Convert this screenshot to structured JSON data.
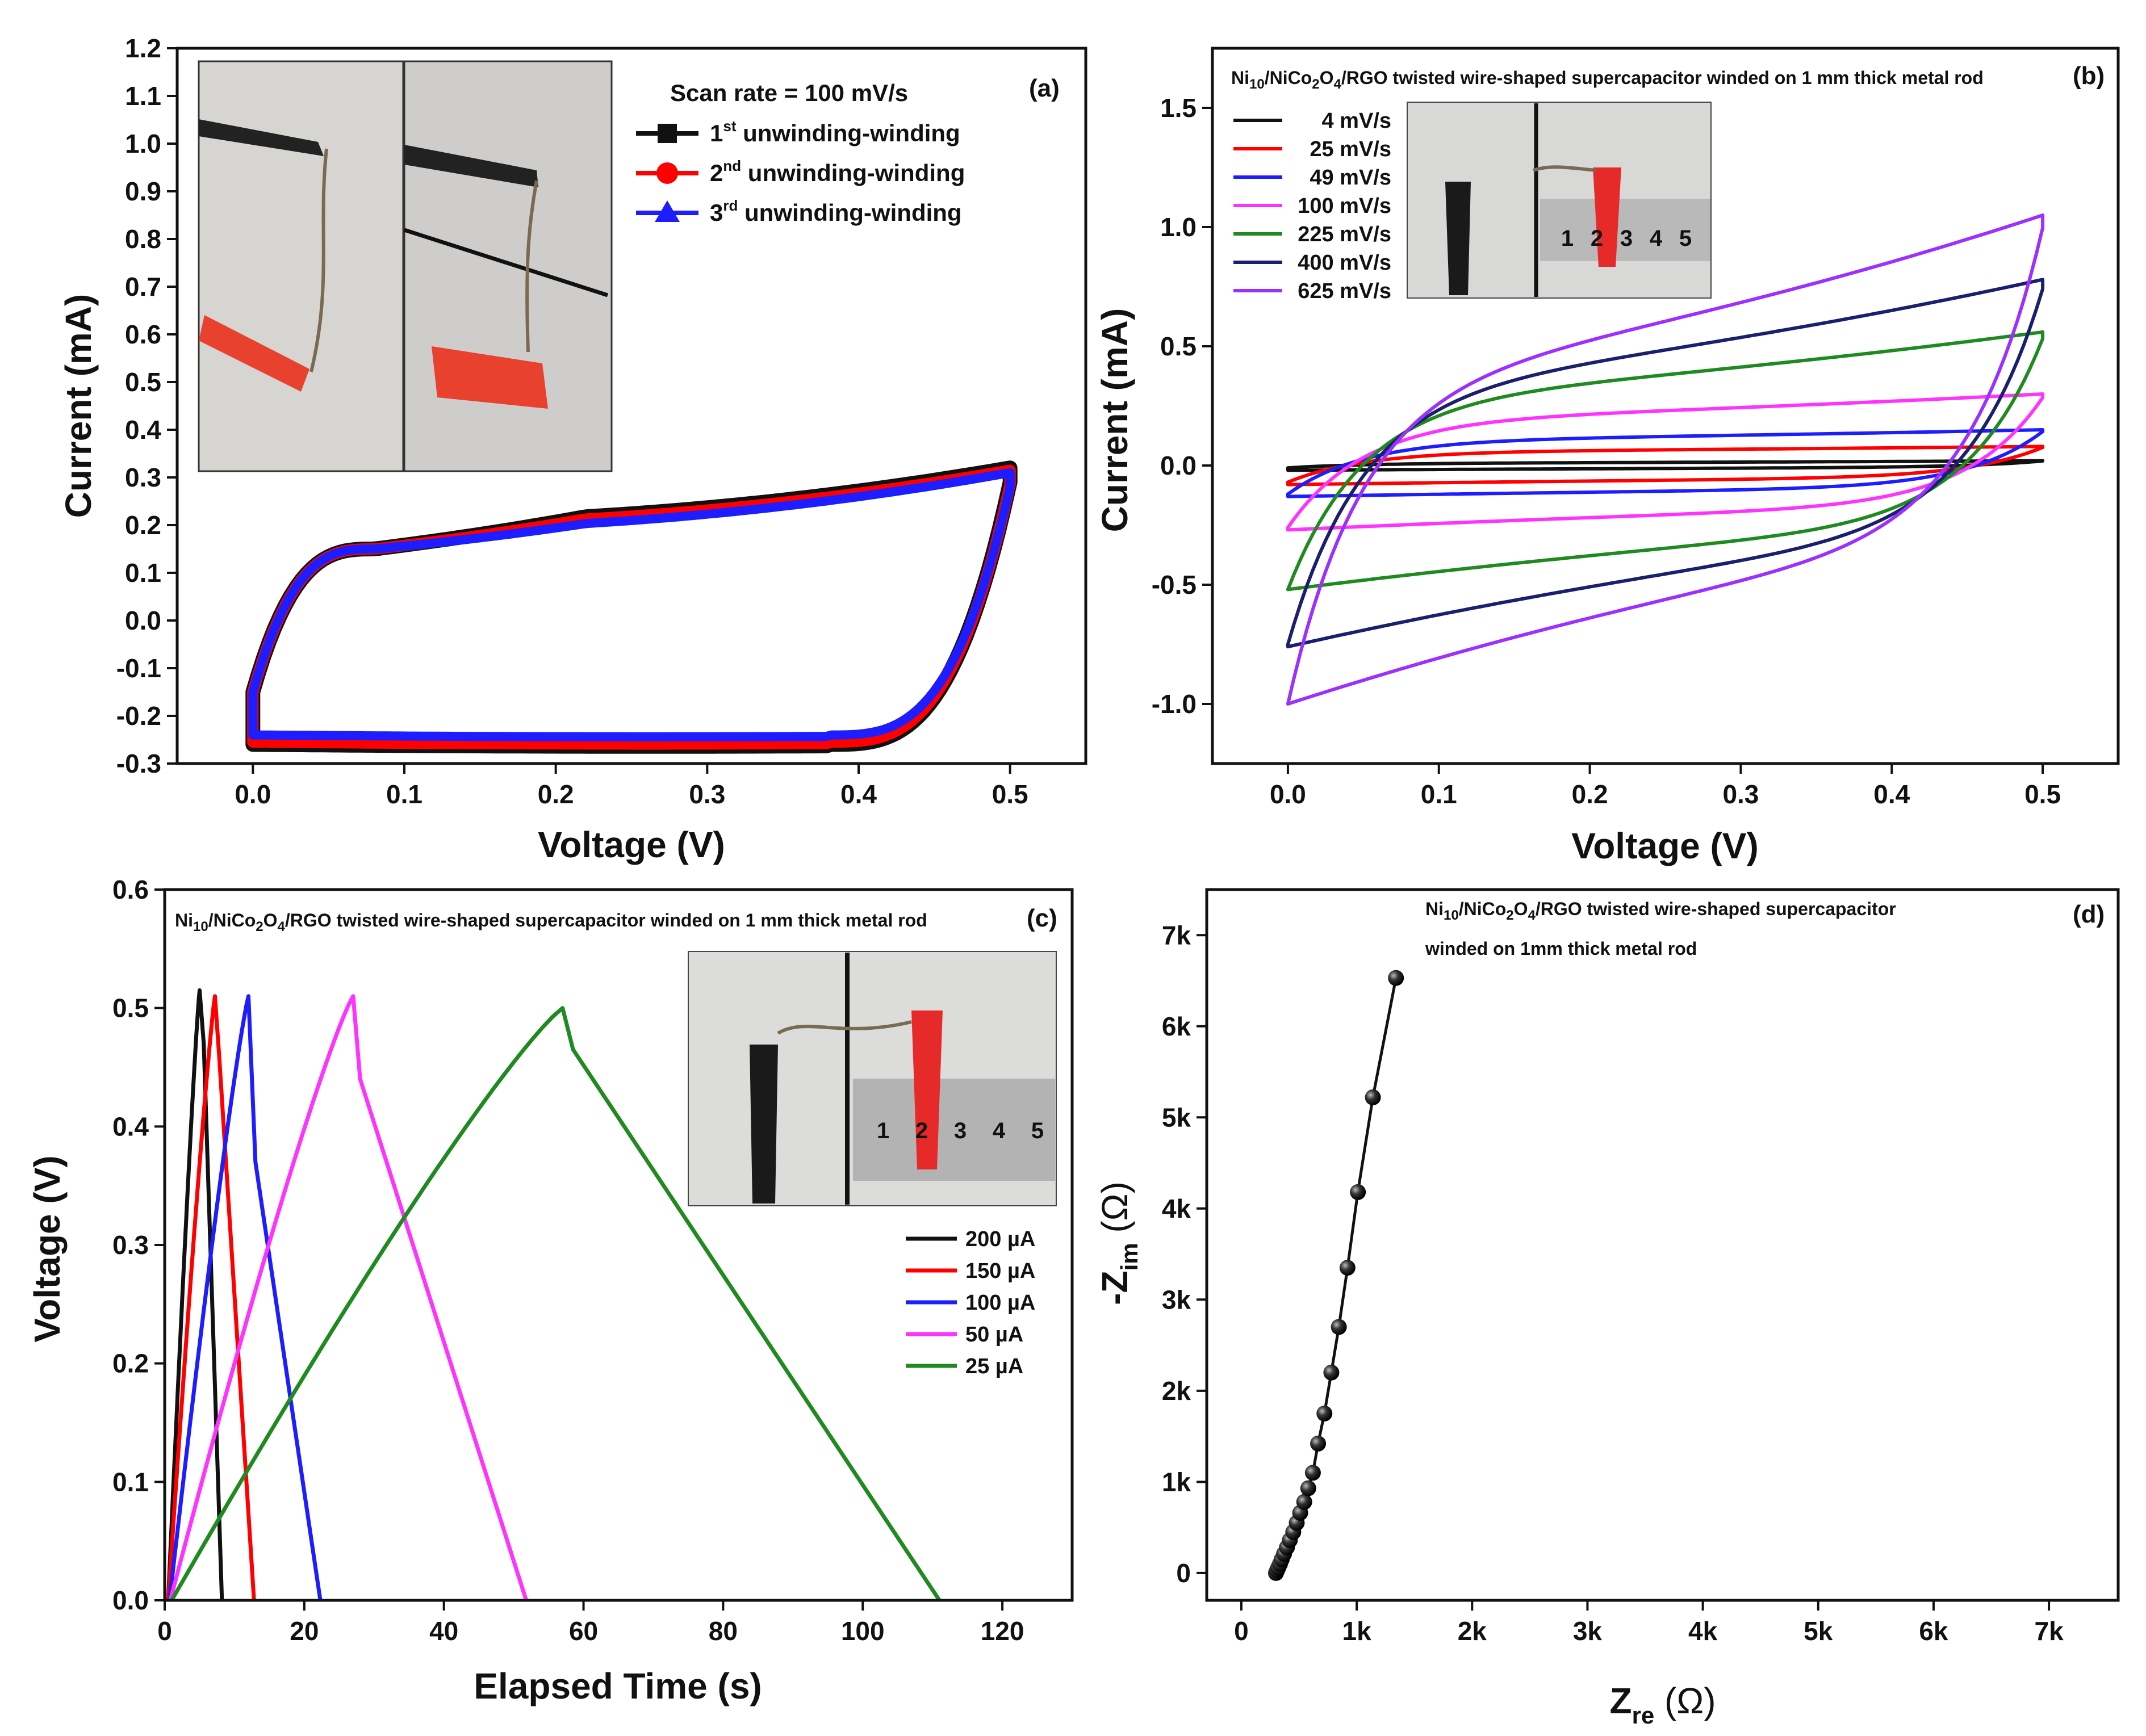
{
  "colors": {
    "black": "#111111",
    "red": "#ff0000",
    "blue": "#1d1dff",
    "magenta": "#ff33ff",
    "green": "#1f8a1f",
    "navy": "#1a1f6e",
    "violet": "#9b30ff"
  },
  "chart_data": [
    {
      "id": "a",
      "type": "line",
      "panel_label": "(a)",
      "xlabel": "Voltage (V)",
      "ylabel": "Current (mA)",
      "xlim": [
        -0.05,
        0.55
      ],
      "ylim": [
        -0.3,
        1.2
      ],
      "xticks": [
        0.0,
        0.1,
        0.2,
        0.3,
        0.4,
        0.5
      ],
      "xtick_labels": [
        "0.0",
        "0.1",
        "0.2",
        "0.3",
        "0.4",
        "0.5"
      ],
      "yticks": [
        -0.3,
        -0.2,
        -0.1,
        0.0,
        0.1,
        0.2,
        0.3,
        0.4,
        0.5,
        0.6,
        0.7,
        0.8,
        0.9,
        1.0,
        1.1,
        1.2
      ],
      "ytick_labels": [
        "-0.3",
        "-0.2",
        "-0.1",
        "0.0",
        "0.1",
        "0.2",
        "0.3",
        "0.4",
        "0.5",
        "0.6",
        "0.7",
        "0.8",
        "0.9",
        "1.0",
        "1.1",
        "1.2"
      ],
      "legend_title": "Scan rate = 100 mV/s",
      "legend_location": "top-right",
      "inset": "photograph of twisted wire held by black and red clips, unwound and wound on rod",
      "series": [
        {
          "name": "1st unwinding-winding",
          "color": "#111111",
          "marker": "square",
          "x_min": 0.0,
          "x_max": 0.5,
          "i_top_start": -0.15,
          "i_top_plateau": 0.205,
          "i_top_end": 0.32,
          "i_bottom": -0.26,
          "i_bottom_end": 0.29
        },
        {
          "name": "2nd unwinding-winding",
          "color": "#ff0000",
          "marker": "circle",
          "x_min": 0.0,
          "x_max": 0.5,
          "i_top_start": -0.15,
          "i_top_plateau": 0.2,
          "i_top_end": 0.315,
          "i_bottom": -0.255,
          "i_bottom_end": 0.285
        },
        {
          "name": "3rd unwinding-winding",
          "color": "#1d1dff",
          "marker": "triangle",
          "x_min": 0.0,
          "x_max": 0.5,
          "i_top_start": -0.15,
          "i_top_plateau": 0.19,
          "i_top_end": 0.31,
          "i_bottom": -0.24,
          "i_bottom_end": 0.28
        }
      ]
    },
    {
      "id": "b",
      "type": "line",
      "panel_label": "(b)",
      "title": "Ni10/NiCo2O4/RGO twisted wire-shaped supercapacitor winded on 1 mm thick metal rod",
      "xlabel": "Voltage (V)",
      "ylabel": "Current (mA)",
      "xlim": [
        -0.05,
        0.55
      ],
      "ylim": [
        -1.25,
        1.75
      ],
      "xticks": [
        0.0,
        0.1,
        0.2,
        0.3,
        0.4,
        0.5
      ],
      "xtick_labels": [
        "0.0",
        "0.1",
        "0.2",
        "0.3",
        "0.4",
        "0.5"
      ],
      "yticks": [
        -1.0,
        -0.5,
        0.0,
        0.5,
        1.0,
        1.5
      ],
      "ytick_labels": [
        "-1.0",
        "-0.5",
        "0.0",
        "0.5",
        "1.0",
        "1.5"
      ],
      "legend_location": "top-left",
      "inset": "photograph of wire wound on 1 mm rod next to a ruler marked 1 2 3 4 5",
      "series": [
        {
          "name": "4 mV/s",
          "color": "#111111",
          "i_start": -0.01,
          "i_end_top": 0.02,
          "i_top_plateau": 0.01,
          "i_bottom": -0.02
        },
        {
          "name": "25 mV/s",
          "color": "#ff0000",
          "i_start": -0.07,
          "i_end_top": 0.08,
          "i_top_plateau": 0.06,
          "i_bottom": -0.08
        },
        {
          "name": "49 mV/s",
          "color": "#1d1dff",
          "i_start": -0.12,
          "i_end_top": 0.15,
          "i_top_plateau": 0.11,
          "i_bottom": -0.13
        },
        {
          "name": "100 mV/s",
          "color": "#ff33ff",
          "i_start": -0.26,
          "i_end_top": 0.3,
          "i_top_plateau": 0.2,
          "i_bottom": -0.27
        },
        {
          "name": "225 mV/s",
          "color": "#1f8a1f",
          "i_start": -0.52,
          "i_end_top": 0.56,
          "i_top_plateau": 0.3,
          "i_bottom": -0.52
        },
        {
          "name": "400 mV/s",
          "color": "#1a1f6e",
          "i_start": -0.75,
          "i_end_top": 0.78,
          "i_top_plateau": 0.35,
          "i_bottom": -0.76
        },
        {
          "name": "625 mV/s",
          "color": "#9b30ff",
          "i_start": -1.0,
          "i_end_top": 1.05,
          "i_top_plateau": 0.4,
          "i_bottom": -1.0
        }
      ]
    },
    {
      "id": "c",
      "type": "line",
      "panel_label": "(c)",
      "title": "Ni10/NiCo2O4/RGO twisted wire-shaped supercapacitor winded on 1 mm thick metal rod",
      "xlabel": "Elapsed Time (s)",
      "ylabel": "Voltage (V)",
      "xlim": [
        0,
        130
      ],
      "ylim": [
        0.0,
        0.6
      ],
      "xticks": [
        0,
        20,
        40,
        60,
        80,
        100,
        120
      ],
      "xtick_labels": [
        "0",
        "20",
        "40",
        "60",
        "80",
        "100",
        "120"
      ],
      "yticks": [
        0.0,
        0.1,
        0.2,
        0.3,
        0.4,
        0.5,
        0.6
      ],
      "ytick_labels": [
        "0.0",
        "0.1",
        "0.2",
        "0.3",
        "0.4",
        "0.5",
        "0.6"
      ],
      "legend_location": "right",
      "inset": "photograph of wire wound on 1 mm rod next to a ruler marked 1 2 3 4 5",
      "series": [
        {
          "name": "200 µA",
          "color": "#111111",
          "t_start": 0.5,
          "t_peak": 5,
          "v_peak": 0.515,
          "t_knee": 5.6,
          "v_knee": 0.47,
          "t_end": 8.2
        },
        {
          "name": "150 µA",
          "color": "#ff0000",
          "t_start": 0.5,
          "t_peak": 7.2,
          "v_peak": 0.51,
          "t_knee": 7.8,
          "v_knee": 0.46,
          "t_end": 12.8
        },
        {
          "name": "100 µA",
          "color": "#1d1dff",
          "t_start": 0.7,
          "t_peak": 12,
          "v_peak": 0.51,
          "t_knee": 13,
          "v_knee": 0.37,
          "t_end": 22.3
        },
        {
          "name": "50 µA",
          "color": "#ff33ff",
          "t_start": 0.8,
          "t_peak": 27,
          "v_peak": 0.51,
          "t_knee": 28,
          "v_knee": 0.44,
          "t_end": 51.8
        },
        {
          "name": "25 µA",
          "color": "#1f8a1f",
          "t_start": 1.0,
          "t_peak": 57,
          "v_peak": 0.5,
          "t_knee": 58.5,
          "v_knee": 0.465,
          "t_end": 111
        }
      ]
    },
    {
      "id": "d",
      "type": "scatter",
      "panel_label": "(d)",
      "title_line1": "Ni10/NiCo2O4/RGO twisted wire-shaped supercapacitor",
      "title_line2": "winded on 1mm thick metal rod",
      "xlabel": "Zre (Ω)",
      "ylabel": "-Zim (Ω)",
      "xlim": [
        -300,
        7600
      ],
      "ylim": [
        -300,
        7500
      ],
      "xticks": [
        0,
        1000,
        2000,
        3000,
        4000,
        5000,
        6000,
        7000
      ],
      "xtick_labels": [
        "0",
        "1k",
        "2k",
        "3k",
        "4k",
        "5k",
        "6k",
        "7k"
      ],
      "yticks": [
        0,
        1000,
        2000,
        3000,
        4000,
        5000,
        6000,
        7000
      ],
      "ytick_labels": [
        "0",
        "1k",
        "2k",
        "3k",
        "4k",
        "5k",
        "6k",
        "7k"
      ],
      "x": [
        300,
        310,
        320,
        335,
        350,
        370,
        395,
        420,
        450,
        480,
        510,
        545,
        580,
        620,
        665,
        720,
        780,
        845,
        920,
        1010,
        1140,
        1340
      ],
      "y": [
        0,
        30,
        60,
        100,
        150,
        210,
        280,
        360,
        450,
        550,
        660,
        780,
        930,
        1100,
        1420,
        1750,
        2200,
        2700,
        3350,
        4180,
        5220,
        6530
      ]
    }
  ],
  "text": {
    "a": {
      "panel": "(a)",
      "xlabel": "Voltage (V)",
      "ylabel": "Current (mA)",
      "legend_title": "Scan rate = 100 mV/s",
      "legend": [
        {
          "num": "1",
          "sup": "st",
          "rest": " unwinding-winding"
        },
        {
          "num": "2",
          "sup": "nd",
          "rest": " unwinding-winding"
        },
        {
          "num": "3",
          "sup": "rd",
          "rest": " unwinding-winding"
        }
      ]
    },
    "b": {
      "panel": "(b)",
      "title_pre": "Ni",
      "title_sub1": "10",
      "title_mid1": "/NiCo",
      "title_sub2": "2",
      "title_mid2": "O",
      "title_sub3": "4",
      "title_post": "/RGO twisted wire-shaped supercapacitor winded on 1 mm thick metal rod",
      "xlabel": "Voltage (V)",
      "ylabel": "Current (mA)",
      "ruler": [
        "1",
        "2",
        "3",
        "4",
        "5"
      ]
    },
    "c": {
      "panel": "(c)",
      "title_pre": "Ni",
      "title_sub1": "10",
      "title_mid1": "/NiCo",
      "title_sub2": "2",
      "title_mid2": "O",
      "title_sub3": "4",
      "title_post": "/RGO twisted wire-shaped supercapacitor winded on 1 mm thick metal rod",
      "xlabel": "Elapsed Time (s)",
      "ylabel": "Voltage (V)",
      "ruler": [
        "1",
        "2",
        "3",
        "4",
        "5"
      ]
    },
    "d": {
      "panel": "(d)",
      "title_pre": "Ni",
      "title_sub1": "10",
      "title_mid1": "/NiCo",
      "title_sub2": "2",
      "title_mid2": "O",
      "title_sub3": "4",
      "title_post": "/RGO twisted wire-shaped supercapacitor",
      "title_line2": "winded on 1mm thick metal rod",
      "xlabel_main": "Z",
      "xlabel_sub": "re",
      "xlabel_unit": " (Ω)",
      "ylabel_main": "-Z",
      "ylabel_sub": "im",
      "ylabel_unit": " (Ω)"
    }
  }
}
